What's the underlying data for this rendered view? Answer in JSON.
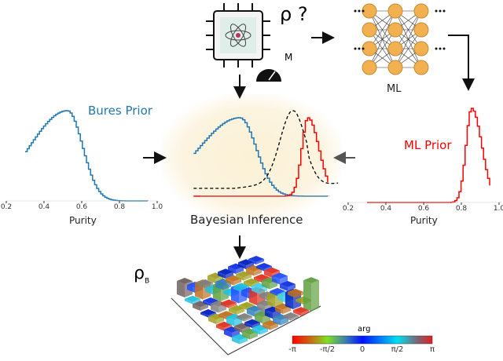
{
  "top": {
    "rho_query": "ρ ?",
    "measure_label": "M",
    "ml_label": "ML"
  },
  "left_plot": {
    "title": "Bures Prior",
    "xlabel": "Purity",
    "xticks": [
      "0.2",
      "0.4",
      "0.6",
      "0.8",
      "1.0"
    ],
    "mean": 0.52,
    "sd": 0.08,
    "color": "#1f77b4"
  },
  "right_plot": {
    "title": "ML Prior",
    "xlabel": "Purity",
    "xticks": [
      "0.2",
      "0.4",
      "0.6",
      "0.8",
      "1.0"
    ],
    "mean": 0.85,
    "sd": 0.03,
    "color": "#ff0000"
  },
  "center": {
    "title": "Bayesian Inference",
    "bures_color": "#1f77b4",
    "ml_color": "#ff0000",
    "posterior_color": "#000000"
  },
  "bottom": {
    "rho": "ρ",
    "rho_sub": "B",
    "colorbar_title": "arg",
    "colorbar_ticks": [
      "-π",
      "-π/2",
      "0",
      "π/2",
      "π"
    ]
  }
}
